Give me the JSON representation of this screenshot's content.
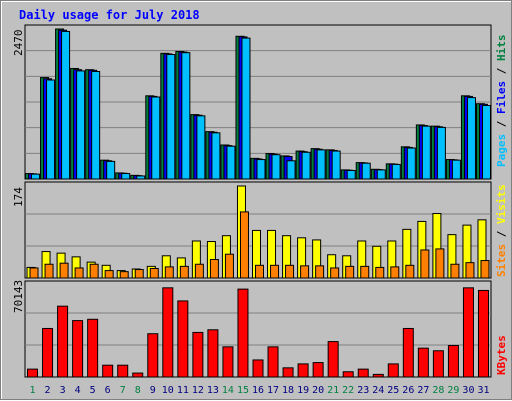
{
  "chart_data": {
    "type": "bar",
    "title": "Daily usage for July 2018",
    "categories": [
      "1",
      "2",
      "3",
      "4",
      "5",
      "6",
      "7",
      "8",
      "9",
      "10",
      "11",
      "12",
      "13",
      "14",
      "15",
      "16",
      "17",
      "18",
      "19",
      "20",
      "21",
      "22",
      "23",
      "24",
      "25",
      "26",
      "27",
      "28",
      "29",
      "30",
      "31"
    ],
    "weekend_days": [
      "1",
      "7",
      "8",
      "14",
      "15",
      "21",
      "22",
      "28",
      "29"
    ],
    "panels": [
      {
        "name": "pages-files-hits",
        "ymax_label": "2470",
        "ymax": 2470,
        "legend": [
          {
            "text": "Pages",
            "color": "#00c0ff"
          },
          {
            "text": " / ",
            "color": "#000000"
          },
          {
            "text": "Files",
            "color": "#0000ff"
          },
          {
            "text": " / ",
            "color": "#000000"
          },
          {
            "text": "Hits",
            "color": "#008040"
          }
        ],
        "series": [
          {
            "name": "Hits",
            "color": "#008040",
            "values": [
              90,
              1670,
              2470,
              1820,
              1800,
              310,
              100,
              60,
              1370,
              2070,
              2100,
              1060,
              780,
              560,
              2350,
              340,
              420,
              380,
              460,
              500,
              480,
              150,
              270,
              160,
              250,
              530,
              890,
              870,
              320,
              1370,
              1240
            ]
          },
          {
            "name": "Files",
            "color": "#0000ff",
            "values": [
              85,
              1650,
              2450,
              1800,
              1790,
              300,
              95,
              55,
              1360,
              2060,
              2090,
              1050,
              770,
              550,
              2340,
              330,
              410,
              370,
              450,
              490,
              470,
              145,
              265,
              155,
              245,
              520,
              880,
              860,
              315,
              1360,
              1230
            ]
          },
          {
            "name": "Pages",
            "color": "#00c0ff",
            "values": [
              80,
              1630,
              2430,
              1780,
              1770,
              290,
              90,
              50,
              1350,
              2050,
              2080,
              1040,
              760,
              540,
              2320,
              320,
              400,
              300,
              440,
              480,
              460,
              140,
              260,
              150,
              240,
              510,
              870,
              850,
              310,
              1340,
              1210
            ]
          }
        ]
      },
      {
        "name": "sites-visits",
        "ymax_label": "174",
        "ymax": 174,
        "legend": [
          {
            "text": "Sites",
            "color": "#ff8000"
          },
          {
            "text": " / ",
            "color": "#000000"
          },
          {
            "text": "Visits",
            "color": "#ffff00"
          }
        ],
        "series": [
          {
            "name": "Visits",
            "color": "#ffff00",
            "values": [
              20,
              50,
              47,
              40,
              30,
              24,
              14,
              17,
              22,
              42,
              38,
              70,
              69,
              80,
              174,
              90,
              90,
              80,
              76,
              72,
              44,
              42,
              70,
              60,
              70,
              92,
              107,
              122,
              82,
              100,
              110
            ]
          },
          {
            "name": "Sites",
            "color": "#ff8000",
            "values": [
              19,
              26,
              28,
              19,
              26,
              14,
              12,
              16,
              18,
              21,
              22,
              26,
              35,
              45,
              125,
              24,
              24,
              24,
              23,
              23,
              19,
              22,
              22,
              20,
              21,
              24,
              53,
              55,
              26,
              29,
              33
            ]
          }
        ]
      },
      {
        "name": "kbytes",
        "ymax_label": "70143",
        "ymax": 70143,
        "legend": [
          {
            "text": "KBytes",
            "color": "#ff0000"
          }
        ],
        "series": [
          {
            "name": "KBytes",
            "color": "#ff0000",
            "values": [
              6000,
              37000,
              54000,
              43000,
              44000,
              9000,
              9000,
              3000,
              33000,
              68000,
              58000,
              34000,
              36000,
              23000,
              67000,
              13000,
              23000,
              7000,
              10000,
              11000,
              27000,
              4000,
              6000,
              2000,
              10000,
              37000,
              22000,
              20000,
              24000,
              68000,
              66000
            ]
          }
        ]
      }
    ],
    "colors": {
      "weekday_label": "#000080",
      "weekend_label": "#008040",
      "background": "#c0c0c0",
      "grid": "#808080"
    }
  }
}
